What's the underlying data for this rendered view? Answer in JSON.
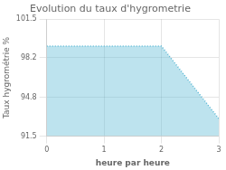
{
  "chart_data": {
    "type": "area",
    "title": "Evolution du taux d'hygrometrie",
    "xlabel": "heure par heure",
    "ylabel": "Taux hygrométrie %",
    "x": [
      0,
      1,
      2,
      3
    ],
    "values": [
      99.2,
      99.2,
      99.2,
      93.0
    ],
    "color": "#5bb8d4",
    "line_style": "dotted",
    "xlim": [
      0,
      3
    ],
    "ylim": [
      91.5,
      101.5
    ],
    "xticks": [
      0,
      1,
      2,
      3
    ],
    "yticks": [
      91.5,
      94.8,
      98.2,
      101.5
    ],
    "grid": true
  }
}
